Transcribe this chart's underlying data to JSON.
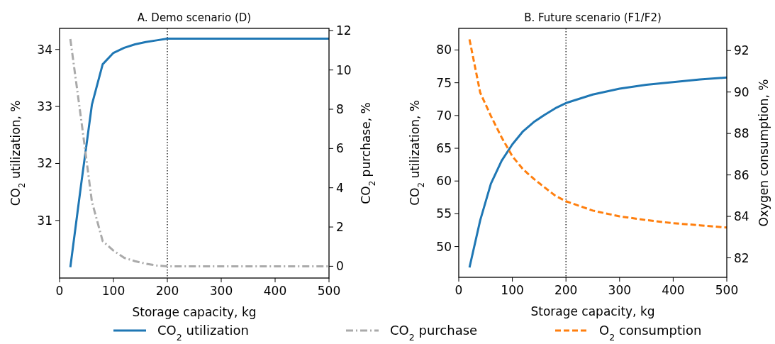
{
  "chart_data": [
    {
      "type": "line",
      "title": "A. Demo scenario (D)",
      "xlabel": "Storage capacity, kg",
      "ylabel": "CO$_{2}$ utilization, %",
      "y2label": "CO$_{2}$ purchase, %",
      "xlim": [
        0,
        500
      ],
      "xticks": [
        0,
        100,
        200,
        300,
        400,
        500
      ],
      "ylim": [
        29.99,
        34.37
      ],
      "yticks": [
        31,
        32,
        33,
        34
      ],
      "y2lim": [
        -0.6,
        12.12
      ],
      "y2ticks": [
        0,
        2,
        4,
        6,
        8,
        10,
        12
      ],
      "legend": "bottom",
      "ref_lines": [
        {
          "axis": "x",
          "value": 200,
          "color": "#000000",
          "line_style": "dotted"
        }
      ],
      "series": [
        {
          "name": "CO$_{2}$ utilization",
          "color": "#1f77b4",
          "line_style": "solid",
          "x": [
            20,
            40,
            60,
            80,
            100,
            120,
            140,
            160,
            180,
            200,
            250,
            300,
            350,
            400,
            450,
            500
          ],
          "values": [
            30.18,
            31.63,
            33.03,
            33.74,
            33.94,
            34.03,
            34.09,
            34.13,
            34.16,
            34.19,
            34.19,
            34.19,
            34.19,
            34.19,
            34.19,
            34.19
          ]
        },
        {
          "name": "CO$_{2}$ purchase",
          "color": "#aaaaaa",
          "line_style": "dashdot",
          "axis": "y2",
          "x": [
            20,
            40,
            60,
            80,
            100,
            120,
            140,
            160,
            180,
            200,
            250,
            300,
            350,
            400,
            450,
            500
          ],
          "values": [
            11.58,
            7.5,
            3.3,
            1.28,
            0.8,
            0.43,
            0.26,
            0.13,
            0.04,
            0,
            0,
            0,
            0,
            0,
            0,
            0
          ]
        }
      ]
    },
    {
      "type": "line",
      "title": "B. Future scenario (F1/F2)",
      "xlabel": "Storage capacity, kg",
      "ylabel": "CO$_{2}$ utilization, %",
      "y2label": "Oxygen consumption, %",
      "xlim": [
        0,
        500
      ],
      "xticks": [
        0,
        100,
        200,
        300,
        400,
        500
      ],
      "ylim": [
        45.3,
        83.3
      ],
      "yticks": [
        50,
        55,
        60,
        65,
        70,
        75,
        80
      ],
      "y2lim": [
        81.06,
        93.07
      ],
      "y2ticks": [
        82,
        84,
        86,
        88,
        90,
        92
      ],
      "legend": "bottom",
      "ref_lines": [
        {
          "axis": "x",
          "value": 200,
          "color": "#000000",
          "line_style": "dotted"
        }
      ],
      "series": [
        {
          "name": "CO$_{2}$ utilization",
          "color": "#1f77b4",
          "line_style": "solid",
          "x": [
            20,
            40,
            60,
            80,
            100,
            120,
            140,
            160,
            180,
            200,
            250,
            300,
            350,
            400,
            450,
            500
          ],
          "values": [
            46.8,
            54.0,
            59.6,
            63.1,
            65.6,
            67.6,
            69.0,
            70.1,
            71.1,
            71.9,
            73.2,
            74.1,
            74.7,
            75.1,
            75.5,
            75.8
          ]
        },
        {
          "name": "O$_{2}$ consumption",
          "color": "#ff7f0e",
          "line_style": "dashed",
          "axis": "y2",
          "x": [
            20,
            40,
            60,
            80,
            100,
            120,
            140,
            160,
            180,
            200,
            250,
            300,
            350,
            400,
            450,
            500
          ],
          "values": [
            92.54,
            89.97,
            88.84,
            87.81,
            86.9,
            86.27,
            85.81,
            85.4,
            85.0,
            84.73,
            84.28,
            84.0,
            83.82,
            83.67,
            83.57,
            83.46
          ]
        }
      ]
    }
  ]
}
